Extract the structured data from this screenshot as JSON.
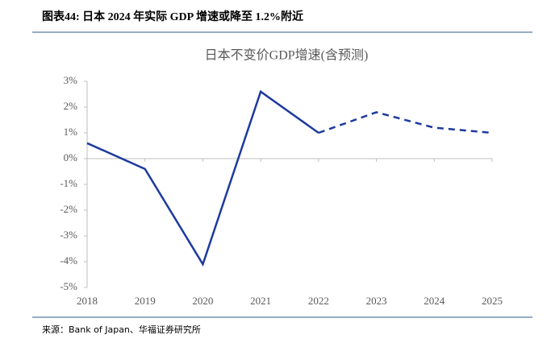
{
  "header": {
    "title": "图表44: 日本 2024 年实际 GDP 增速或降至 1.2%附近"
  },
  "chart_data": {
    "type": "line",
    "title": "日本不变价GDP增速(含预测)",
    "categories": [
      "2018",
      "2019",
      "2020",
      "2021",
      "2022",
      "2023",
      "2024",
      "2025"
    ],
    "series": [
      {
        "color": "#1d3a9e",
        "values": [
          0.6,
          -0.4,
          -4.1,
          2.6,
          1.0,
          1.8,
          1.2,
          1.0
        ]
      }
    ],
    "dashed_from_index": 4,
    "ylim": [
      -5,
      3
    ],
    "yticks": [
      {
        "value": -5,
        "label": "-5%"
      },
      {
        "value": -4,
        "label": "-4%"
      },
      {
        "value": -3,
        "label": "-3%"
      },
      {
        "value": -2,
        "label": "-2%"
      },
      {
        "value": -1,
        "label": "-1%"
      },
      {
        "value": 0,
        "label": "0%"
      },
      {
        "value": 1,
        "label": "1%"
      },
      {
        "value": 2,
        "label": "2%"
      },
      {
        "value": 3,
        "label": "3%"
      }
    ]
  },
  "footer": {
    "source": "来源：Bank of Japan、华福证券研究所"
  }
}
